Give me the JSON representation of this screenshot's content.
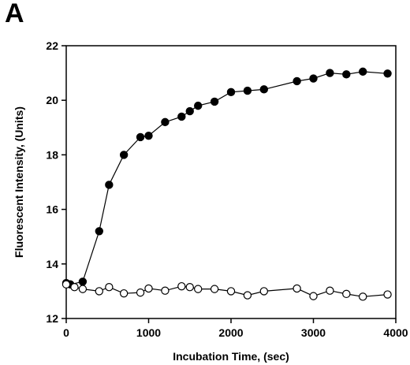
{
  "panel_label": "A",
  "chart_data": {
    "type": "scatter",
    "title": "",
    "xlabel": "Incubation Time, (sec)",
    "ylabel": "Fluorescent Intensity, (Units)",
    "xlim": [
      0,
      4000
    ],
    "ylim": [
      12,
      22
    ],
    "xticks": [
      0,
      1000,
      2000,
      3000,
      4000
    ],
    "yticks": [
      12,
      14,
      16,
      18,
      20,
      22
    ],
    "grid": false,
    "legend": "none",
    "series": [
      {
        "marker": "filled-circle",
        "color": "#000000",
        "x": [
          0,
          50,
          200,
          400,
          520,
          700,
          900,
          1000,
          1200,
          1400,
          1500,
          1600,
          1800,
          2000,
          2200,
          2400,
          2800,
          3000,
          3200,
          3400,
          3600,
          3900
        ],
        "y": [
          13.3,
          13.25,
          13.35,
          15.2,
          16.9,
          18.0,
          18.65,
          18.7,
          19.2,
          19.4,
          19.6,
          19.8,
          19.95,
          20.3,
          20.35,
          20.4,
          20.7,
          20.8,
          21.0,
          20.95,
          21.05,
          20.98
        ]
      },
      {
        "marker": "open-circle",
        "color": "#000000",
        "x": [
          0,
          100,
          200,
          400,
          520,
          700,
          900,
          1000,
          1200,
          1400,
          1500,
          1600,
          1800,
          2000,
          2200,
          2400,
          2800,
          3000,
          3200,
          3400,
          3600,
          3900
        ],
        "y": [
          13.25,
          13.15,
          13.08,
          13.0,
          13.15,
          12.92,
          12.95,
          13.1,
          13.02,
          13.18,
          13.15,
          13.08,
          13.08,
          13.0,
          12.85,
          13.0,
          13.1,
          12.82,
          13.02,
          12.9,
          12.8,
          12.88
        ]
      }
    ]
  }
}
